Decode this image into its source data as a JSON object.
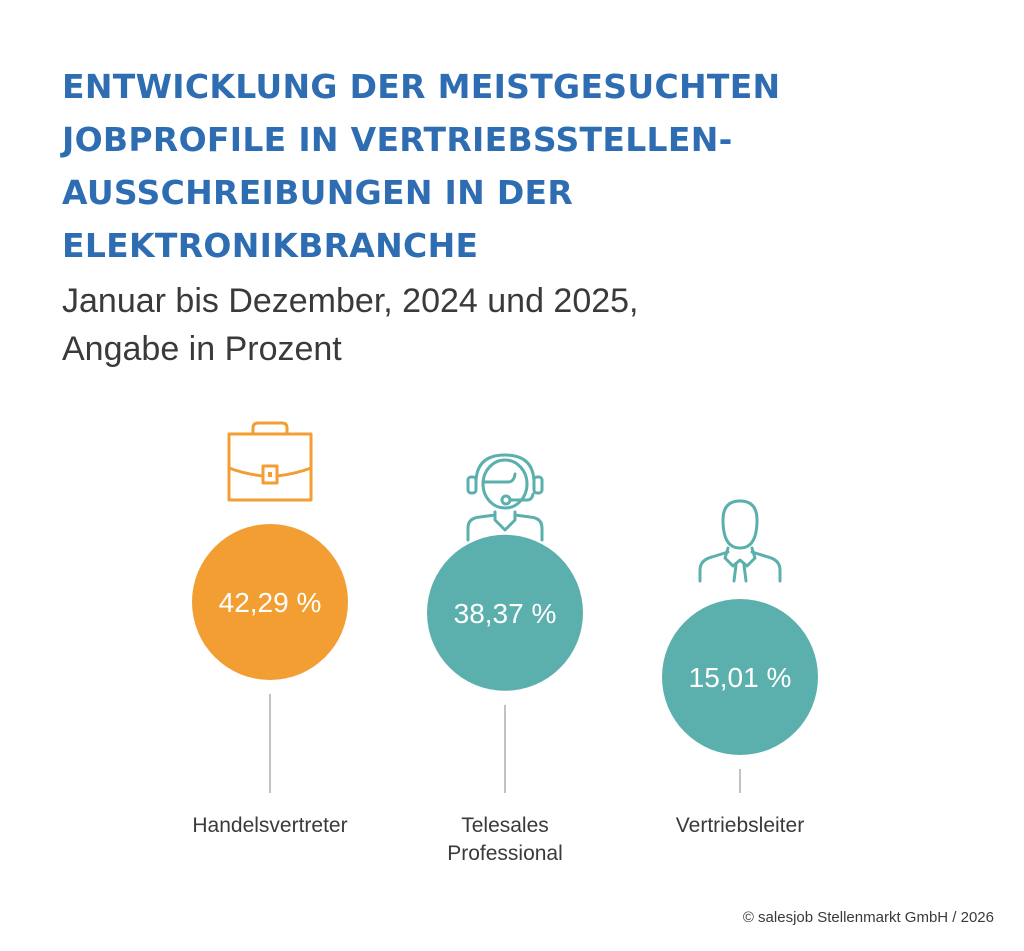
{
  "header": {
    "title_lines": [
      "ENTWICKLUNG DER MEISTGESUCHTEN",
      "JOBPROFILE IN VERTRIEBSSTELLEN-",
      "AUSSCHREIBUNGEN IN DER",
      "ELEKTRONIKBRANCHE"
    ],
    "subtitle_lines": [
      "Januar bis Dezember, 2024 und 2025,",
      "Angabe in Prozent"
    ]
  },
  "colors": {
    "title": "#2e6db1",
    "text": "#3a3a3a",
    "orange": "#f29e33",
    "teal": "#5bb0ad",
    "connector": "#9a9a9a"
  },
  "chart_data": {
    "type": "bubble",
    "title": "Entwicklung der meistgesuchten Jobprofile in Vertriebsstellen-Ausschreibungen in der Elektronikbranche",
    "subtitle": "Januar bis Dezember, 2024 und 2025, Angabe in Prozent",
    "unit": "%",
    "categories": [
      "Handelsvertreter",
      "Telesales Professional",
      "Vertriebsleiter"
    ],
    "values": [
      42.29,
      38.37,
      15.01
    ],
    "items": [
      {
        "label_lines": [
          "Handelsvertreter"
        ],
        "value": 42.29,
        "value_label": "42,29 %",
        "color_key": "orange",
        "icon": "briefcase-icon"
      },
      {
        "label_lines": [
          "Telesales",
          "Professional"
        ],
        "value": 38.37,
        "value_label": "38,37 %",
        "color_key": "teal",
        "icon": "headset-agent-icon"
      },
      {
        "label_lines": [
          "Vertriebsleiter"
        ],
        "value": 15.01,
        "value_label": "15,01 %",
        "color_key": "teal",
        "icon": "businessman-icon"
      }
    ]
  },
  "footer": {
    "copyright": "© salesjob Stellenmarkt GmbH / 2026"
  }
}
